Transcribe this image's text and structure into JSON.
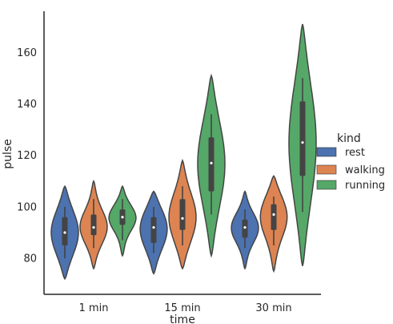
{
  "chart_data": {
    "type": "violin",
    "title": "",
    "xlabel": "time",
    "ylabel": "pulse",
    "categories": [
      "1 min",
      "15 min",
      "30 min"
    ],
    "ylim": [
      66,
      176
    ],
    "yticks": [
      80,
      100,
      120,
      140,
      160
    ],
    "grid": false,
    "legend": {
      "title": "kind",
      "position": "right"
    },
    "series": [
      {
        "name": "rest",
        "color": "#4c72b0",
        "stats": [
          {
            "min": 72,
            "max": 108,
            "q1": 85,
            "median": 90,
            "q3": 96,
            "wlo": 80,
            "whi": 100
          },
          {
            "min": 74,
            "max": 106,
            "q1": 86,
            "median": 92,
            "q3": 96,
            "wlo": 82,
            "whi": 100
          },
          {
            "min": 76,
            "max": 106,
            "q1": 88,
            "median": 92,
            "q3": 95,
            "wlo": 84,
            "whi": 99
          }
        ]
      },
      {
        "name": "walking",
        "color": "#dd8452",
        "stats": [
          {
            "min": 76,
            "max": 110,
            "q1": 89,
            "median": 92,
            "q3": 97,
            "wlo": 84,
            "whi": 103
          },
          {
            "min": 76,
            "max": 118,
            "q1": 91,
            "median": 95.5,
            "q3": 103,
            "wlo": 85,
            "whi": 108
          },
          {
            "min": 75,
            "max": 112,
            "q1": 91,
            "median": 97,
            "q3": 101,
            "wlo": 85,
            "whi": 104
          }
        ]
      },
      {
        "name": "running",
        "color": "#55a868",
        "stats": [
          {
            "min": 81,
            "max": 108,
            "q1": 93,
            "median": 96,
            "q3": 99,
            "wlo": 87,
            "whi": 103
          },
          {
            "min": 81,
            "max": 151,
            "q1": 106,
            "median": 117,
            "q3": 127,
            "wlo": 97,
            "whi": 136
          },
          {
            "min": 77,
            "max": 171,
            "q1": 112,
            "median": 125,
            "q3": 141,
            "wlo": 98,
            "whi": 150
          }
        ]
      }
    ]
  }
}
